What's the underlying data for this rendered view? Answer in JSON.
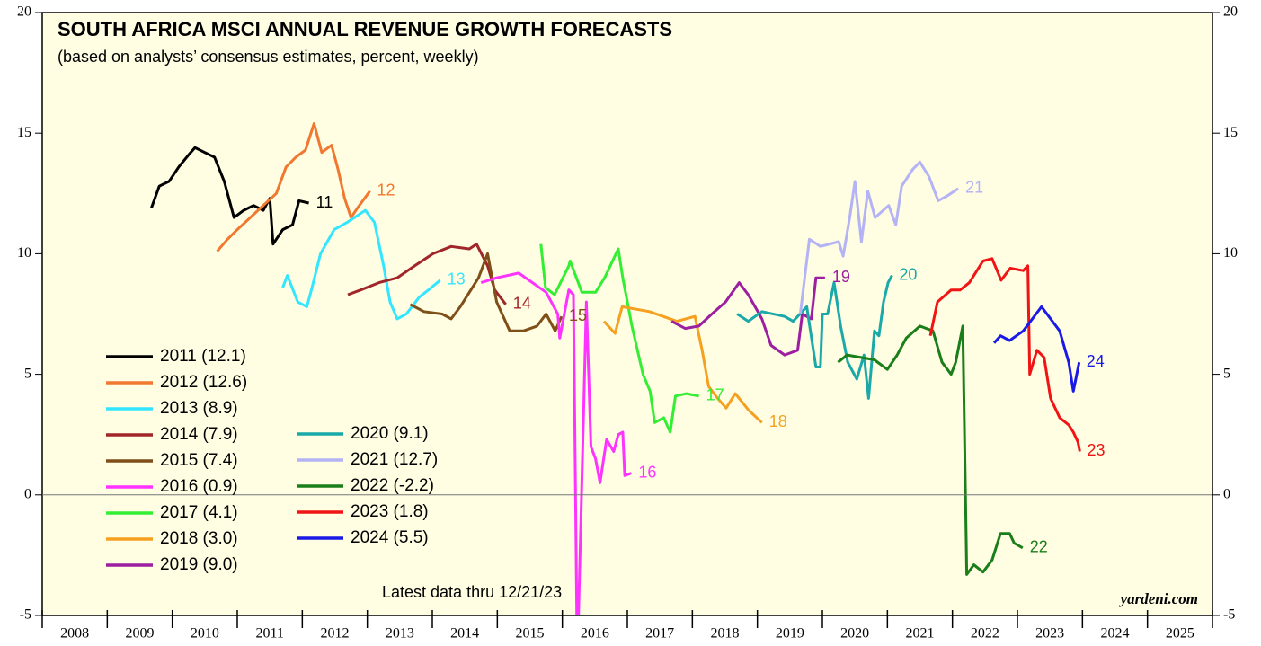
{
  "chart_data": {
    "type": "line",
    "title": "SOUTH AFRICA MSCI ANNUAL REVENUE GROWTH FORECASTS",
    "subtitle": "(based on analysts’ consensus estimates, percent, weekly)",
    "note": "Latest data thru  12/21/23",
    "source": "yardeni.com",
    "xlim": [
      2008,
      2026
    ],
    "xticks": [
      2008,
      2009,
      2010,
      2011,
      2012,
      2013,
      2014,
      2015,
      2016,
      2017,
      2018,
      2019,
      2020,
      2021,
      2022,
      2023,
      2024,
      2025,
      2026
    ],
    "xtick_labels": [
      {
        "value": 2008.5,
        "label": "2008"
      },
      {
        "value": 2009.5,
        "label": "2009"
      },
      {
        "value": 2010.5,
        "label": "2010"
      },
      {
        "value": 2011.5,
        "label": "2011"
      },
      {
        "value": 2012.5,
        "label": "2012"
      },
      {
        "value": 2013.5,
        "label": "2013"
      },
      {
        "value": 2014.5,
        "label": "2014"
      },
      {
        "value": 2015.5,
        "label": "2015"
      },
      {
        "value": 2016.5,
        "label": "2016"
      },
      {
        "value": 2017.5,
        "label": "2017"
      },
      {
        "value": 2018.5,
        "label": "2018"
      },
      {
        "value": 2019.5,
        "label": "2019"
      },
      {
        "value": 2020.5,
        "label": "2020"
      },
      {
        "value": 2021.5,
        "label": "2021"
      },
      {
        "value": 2022.5,
        "label": "2022"
      },
      {
        "value": 2023.5,
        "label": "2023"
      },
      {
        "value": 2024.5,
        "label": "2024"
      },
      {
        "value": 2025.5,
        "label": "2025"
      }
    ],
    "ylim": [
      -5,
      20
    ],
    "yticks": [
      -5,
      0,
      5,
      10,
      15,
      20
    ],
    "legend": "lower-left",
    "series": [
      {
        "name": "2011 (12.1)",
        "label": "11",
        "color": "#000000",
        "x": [
          2009.68,
          2009.8,
          2009.95,
          2010.1,
          2010.25,
          2010.35,
          2010.5,
          2010.65,
          2010.8,
          2010.95,
          2011.1,
          2011.25,
          2011.4,
          2011.5,
          2011.55,
          2011.7,
          2011.85,
          2011.95,
          2012.1
        ],
        "values": [
          11.9,
          12.8,
          13.0,
          13.6,
          14.1,
          14.4,
          14.2,
          14.0,
          13.0,
          11.5,
          11.8,
          12.0,
          11.8,
          12.3,
          10.4,
          11.0,
          11.2,
          12.2,
          12.1
        ]
      },
      {
        "name": "2012 (12.6)",
        "label": "12",
        "color": "#f07830",
        "x": [
          2010.69,
          2010.85,
          2011.0,
          2011.2,
          2011.4,
          2011.6,
          2011.75,
          2011.9,
          2012.05,
          2012.18,
          2012.3,
          2012.45,
          2012.55,
          2012.65,
          2012.75,
          2012.85,
          2013.04
        ],
        "values": [
          10.1,
          10.6,
          11.0,
          11.5,
          12.0,
          12.5,
          13.6,
          14.0,
          14.3,
          15.4,
          14.2,
          14.5,
          13.5,
          12.3,
          11.5,
          11.9,
          12.6
        ]
      },
      {
        "name": "2013 (8.9)",
        "label": "13",
        "color": "#33e6ff",
        "x": [
          2011.7,
          2011.77,
          2011.93,
          2012.07,
          2012.14,
          2012.28,
          2012.49,
          2012.69,
          2012.97,
          2013.11,
          2013.25,
          2013.35,
          2013.46,
          2013.6,
          2013.8,
          2013.94,
          2014.12
        ],
        "values": [
          8.6,
          9.1,
          8.0,
          7.8,
          8.5,
          10.0,
          11.0,
          11.3,
          11.8,
          11.3,
          9.5,
          8.0,
          7.3,
          7.5,
          8.2,
          8.5,
          8.9
        ]
      },
      {
        "name": "2014 (7.9)",
        "label": "14",
        "color": "#a0262a",
        "x": [
          2012.7,
          2012.9,
          2013.18,
          2013.46,
          2013.73,
          2014.01,
          2014.29,
          2014.57,
          2014.68,
          2014.85,
          2014.96,
          2015.13
        ],
        "values": [
          8.3,
          8.5,
          8.8,
          9.0,
          9.5,
          10.0,
          10.3,
          10.2,
          10.4,
          9.5,
          8.5,
          7.9
        ]
      },
      {
        "name": "2015 (7.4)",
        "label": "15",
        "color": "#7f4f1a",
        "x": [
          2013.66,
          2013.87,
          2014.15,
          2014.29,
          2014.43,
          2014.71,
          2014.85,
          2014.99,
          2015.19,
          2015.4,
          2015.61,
          2015.75,
          2015.89,
          2015.99
        ],
        "values": [
          7.9,
          7.6,
          7.5,
          7.3,
          7.8,
          9.0,
          10.0,
          8.0,
          6.8,
          6.8,
          7.0,
          7.5,
          6.8,
          7.4
        ]
      },
      {
        "name": "2016 (0.9)",
        "label": "16",
        "color": "#ff33ff",
        "x": [
          2014.75,
          2014.99,
          2015.33,
          2015.54,
          2015.75,
          2015.93,
          2015.96,
          2016.1,
          2016.17,
          2016.23,
          2016.37,
          2016.44,
          2016.51,
          2016.58,
          2016.68,
          2016.79,
          2016.86,
          2016.93,
          2016.96,
          2017.06
        ],
        "values": [
          8.8,
          9.0,
          9.2,
          8.8,
          8.4,
          7.5,
          6.5,
          8.5,
          8.3,
          -7,
          8.0,
          2.0,
          1.5,
          0.5,
          2.3,
          1.8,
          2.5,
          2.6,
          0.8,
          0.9
        ]
      },
      {
        "name": "2017 (4.1)",
        "label": "17",
        "color": "#33ee33",
        "x": [
          2015.67,
          2015.74,
          2015.88,
          2016.1,
          2016.12,
          2016.3,
          2016.51,
          2016.65,
          2016.79,
          2016.86,
          2016.93,
          2017.07,
          2017.24,
          2017.35,
          2017.42,
          2017.56,
          2017.66,
          2017.74,
          2017.91,
          2018.1
        ],
        "values": [
          10.4,
          8.6,
          8.3,
          9.5,
          9.7,
          8.4,
          8.4,
          9.0,
          9.8,
          10.2,
          9.0,
          7.0,
          5.0,
          4.3,
          3.0,
          3.2,
          2.6,
          4.1,
          4.2,
          4.1
        ]
      },
      {
        "name": "2018 (3.0)",
        "label": "18",
        "color": "#f5a020",
        "x": [
          2016.64,
          2016.81,
          2016.92,
          2017.34,
          2017.76,
          2018.04,
          2018.15,
          2018.25,
          2018.39,
          2018.52,
          2018.66,
          2018.87,
          2019.07
        ],
        "values": [
          7.2,
          6.7,
          7.8,
          7.6,
          7.2,
          7.4,
          6.0,
          4.5,
          4.0,
          3.6,
          4.2,
          3.5,
          3.0
        ]
      },
      {
        "name": "2019 (9.0)",
        "label": "19",
        "color": "#9b1fa0",
        "x": [
          2017.68,
          2017.89,
          2018.1,
          2018.3,
          2018.51,
          2018.72,
          2018.86,
          2019.07,
          2019.21,
          2019.42,
          2019.62,
          2019.69,
          2019.83,
          2019.9,
          2020.04
        ],
        "values": [
          7.2,
          6.9,
          7.0,
          7.5,
          8.0,
          8.8,
          8.3,
          7.3,
          6.2,
          5.8,
          6.0,
          7.5,
          7.3,
          9.0,
          9.0
        ]
      },
      {
        "name": "2020 (9.1)",
        "label": "20",
        "color": "#19a9a9",
        "x": [
          2018.69,
          2018.86,
          2019.07,
          2019.42,
          2019.55,
          2019.76,
          2019.9,
          2019.97,
          2020.0,
          2020.08,
          2020.18,
          2020.28,
          2020.39,
          2020.53,
          2020.64,
          2020.71,
          2020.8,
          2020.87,
          2020.94,
          2021.01,
          2021.07
        ],
        "values": [
          7.5,
          7.2,
          7.6,
          7.4,
          7.2,
          7.8,
          5.3,
          5.3,
          7.5,
          7.5,
          8.8,
          7.0,
          5.5,
          4.8,
          5.8,
          4.0,
          6.8,
          6.6,
          8.0,
          8.8,
          9.1
        ]
      },
      {
        "name": "2021 (12.7)",
        "label": "21",
        "color": "#b3b3f5",
        "x": [
          2019.66,
          2019.8,
          2019.97,
          2020.25,
          2020.32,
          2020.42,
          2020.5,
          2020.6,
          2020.7,
          2020.81,
          2021.02,
          2021.13,
          2021.22,
          2021.39,
          2021.5,
          2021.64,
          2021.78,
          2021.92,
          2022.09
        ],
        "values": [
          7.5,
          10.6,
          10.3,
          10.5,
          9.9,
          11.5,
          13.0,
          10.5,
          12.6,
          11.5,
          12.0,
          11.2,
          12.8,
          13.5,
          13.8,
          13.2,
          12.2,
          12.4,
          12.7
        ]
      },
      {
        "name": "2022 (-2.2)",
        "label": "22",
        "color": "#1a7f1a",
        "x": [
          2020.24,
          2020.38,
          2020.8,
          2021.0,
          2021.15,
          2021.29,
          2021.5,
          2021.7,
          2021.84,
          2021.98,
          2022.05,
          2022.16,
          2022.22,
          2022.33,
          2022.47,
          2022.61,
          2022.74,
          2022.88,
          2022.95,
          2023.08
        ],
        "values": [
          5.5,
          5.8,
          5.6,
          5.2,
          5.8,
          6.5,
          7.0,
          6.8,
          5.5,
          5.0,
          5.5,
          7.0,
          -3.3,
          -2.9,
          -3.2,
          -2.7,
          -1.6,
          -1.6,
          -2.0,
          -2.2
        ]
      },
      {
        "name": "2023 (1.8)",
        "label": "23",
        "color": "#f01414",
        "x": [
          2021.66,
          2021.77,
          2021.98,
          2022.12,
          2022.26,
          2022.47,
          2022.61,
          2022.75,
          2022.89,
          2023.09,
          2023.16,
          2023.19,
          2023.3,
          2023.41,
          2023.51,
          2023.65,
          2023.79,
          2023.86,
          2023.93,
          2023.96
        ],
        "values": [
          6.6,
          8.0,
          8.5,
          8.5,
          8.8,
          9.7,
          9.8,
          8.9,
          9.4,
          9.3,
          9.5,
          5.0,
          6.0,
          5.7,
          4.0,
          3.2,
          2.9,
          2.6,
          2.2,
          1.8
        ]
      },
      {
        "name": "2024 (5.5)",
        "label": "24",
        "color": "#1a1ae6",
        "x": [
          2022.64,
          2022.74,
          2022.88,
          2023.09,
          2023.23,
          2023.37,
          2023.51,
          2023.65,
          2023.79,
          2023.86,
          2023.95
        ],
        "values": [
          6.3,
          6.6,
          6.4,
          6.8,
          7.3,
          7.8,
          7.3,
          6.8,
          5.5,
          4.3,
          5.5
        ]
      }
    ]
  }
}
